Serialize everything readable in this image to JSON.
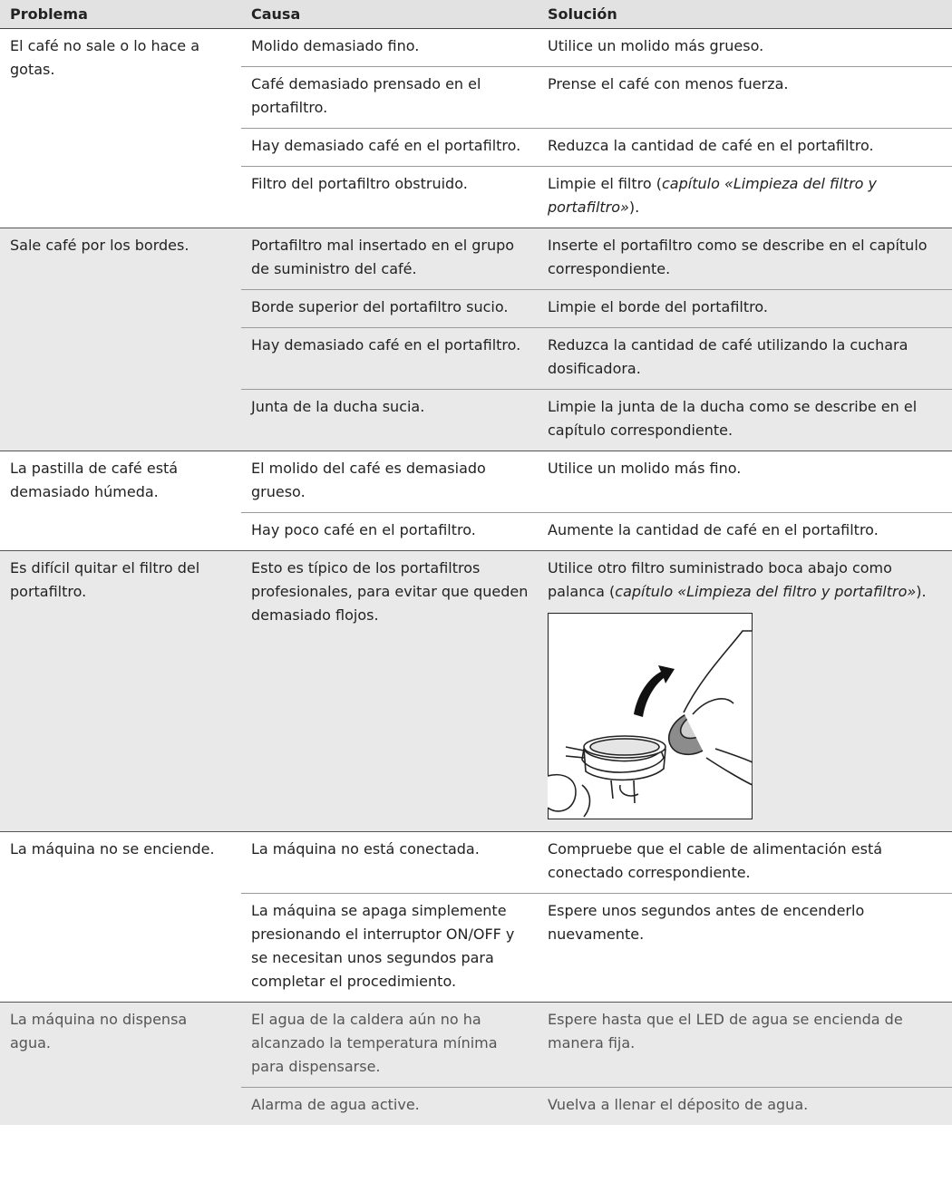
{
  "table": {
    "header": [
      "Problema",
      "Causa",
      "Solución"
    ],
    "groups": [
      {
        "problem": "El café no sale o lo hace a gotas.",
        "rows": [
          {
            "cause": "Molido demasiado fino.",
            "solution": [
              {
                "text": "Utilice un molido más grueso."
              }
            ]
          },
          {
            "cause": "Café demasiado prensado en el portafiltro.",
            "solution": [
              {
                "text": "Prense el café con menos fuerza."
              }
            ]
          },
          {
            "cause": "Hay demasiado café en el portafiltro.",
            "solution": [
              {
                "text": "Reduzca la cantidad de café en el portafiltro."
              }
            ]
          },
          {
            "cause": "Filtro del portafiltro obstruido.",
            "solution": [
              {
                "text": "Limpie el filtro ("
              },
              {
                "text": "capítulo «Limpieza del filtro y portafiltro»",
                "italic": true
              },
              {
                "text": ")."
              }
            ]
          }
        ]
      },
      {
        "problem": "Sale café por los bordes.",
        "rows": [
          {
            "cause": "Portafiltro mal insertado en el grupo de suministro del café.",
            "solution": [
              {
                "text": "Inserte el portafiltro como se describe en el capítulo correspondiente."
              }
            ]
          },
          {
            "cause": "Borde superior del portafiltro sucio.",
            "solution": [
              {
                "text": "Limpie el borde del portafiltro."
              }
            ]
          },
          {
            "cause": "Hay demasiado café en el portafiltro.",
            "solution": [
              {
                "text": "Reduzca la cantidad de café utilizando la cuchara dosificadora."
              }
            ]
          },
          {
            "cause": "Junta de la ducha sucia.",
            "solution": [
              {
                "text": "Limpie la junta de la ducha como se describe en el capítulo correspondiente."
              }
            ]
          }
        ]
      },
      {
        "problem": "La pastilla de café está demasiado húmeda.",
        "rows": [
          {
            "cause": "El molido del café es demasiado grueso.",
            "solution": [
              {
                "text": "Utilice un molido más fino."
              }
            ]
          },
          {
            "cause": "Hay poco café en el portafiltro.",
            "solution": [
              {
                "text": "Aumente la cantidad de café en el portafiltro."
              }
            ]
          }
        ]
      },
      {
        "problem": "Es difícil quitar el filtro del portafiltro.",
        "rows": [
          {
            "cause": "Esto es típico de los portafiltros profesionales, para evitar que queden demasiado flojos.",
            "solution": [
              {
                "text": "Utilice otro filtro suministrado boca abajo como palanca ("
              },
              {
                "text": "capítulo «Limpieza del filtro y portafiltro»",
                "italic": true
              },
              {
                "text": ")."
              }
            ]
          }
        ]
      },
      {
        "problem": "La máquina no se enciende.",
        "rows": [
          {
            "cause": "La máquina no está conectada.",
            "solution": [
              {
                "text": "Compruebe que el cable de alimentación está conectado correspondiente."
              }
            ]
          },
          {
            "cause": "La máquina se apaga simplemente presionando el interruptor ON/OFF y se necesitan unos segundos para completar el procedimiento.",
            "solution": [
              {
                "text": "Espere unos segundos antes de encenderlo nuevamente."
              }
            ]
          }
        ]
      },
      {
        "problem": "La máquina no dispensa agua.",
        "rows": [
          {
            "cause": "El agua de la caldera aún no ha alcanzado la temperatura mínima para dispensarse.",
            "solution": [
              {
                "text": "Espere hasta que el LED de agua se encienda de manera fija."
              }
            ]
          },
          {
            "cause": "Alarma de agua active.",
            "solution": [
              {
                "text": "Vuelva a llenar el déposito de agua."
              }
            ]
          }
        ]
      }
    ]
  }
}
